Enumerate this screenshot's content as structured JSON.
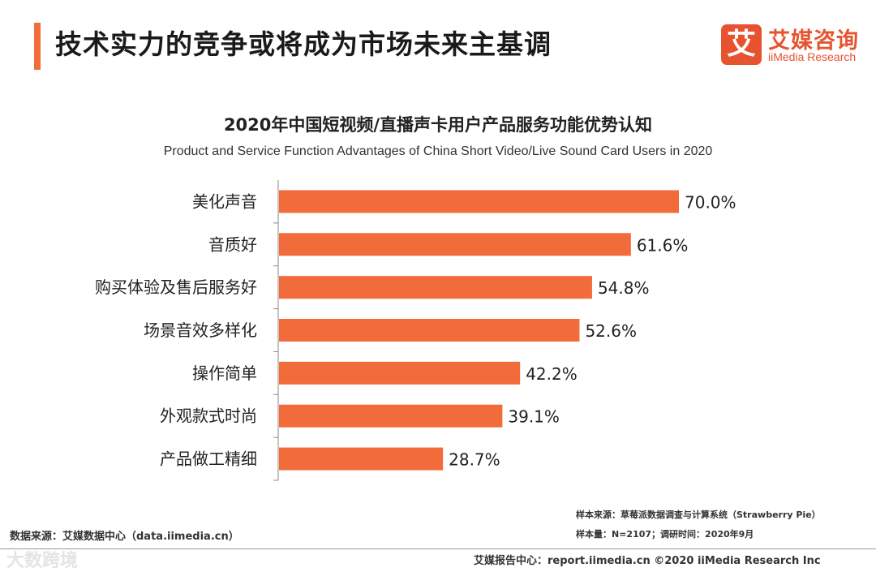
{
  "header": {
    "title": "技术实力的竞争或将成为市场未来主基调"
  },
  "logo": {
    "mark": "艾",
    "name_cn": "艾媒咨询",
    "name_en": "iiMedia Research"
  },
  "chart_data": {
    "type": "bar",
    "orientation": "horizontal",
    "title": "2020年中国短视频/直播声卡用户产品服务功能优势认知",
    "subtitle": "Product and Service Function Advantages of China Short Video/Live Sound Card Users in 2020",
    "categories": [
      "美化声音",
      "音质好",
      "购买体验及售后服务好",
      "场景音效多样化",
      "操作简单",
      "外观款式时尚",
      "产品做工精细"
    ],
    "values": [
      70.0,
      61.6,
      54.8,
      52.6,
      42.2,
      39.1,
      28.7
    ],
    "value_labels": [
      "70.0%",
      "61.6%",
      "54.8%",
      "52.6%",
      "42.2%",
      "39.1%",
      "28.7%"
    ],
    "unit": "%",
    "xlim": [
      0,
      70
    ],
    "bar_color": "#f26b3a",
    "grid": false
  },
  "source": {
    "left": "数据来源：艾媒数据中心（data.iimedia.cn）",
    "sample_source": "样本来源：草莓派数据调查与计算系统（Strawberry Pie）",
    "sample_size": "样本量：N=2107；调研时间：2020年9月"
  },
  "footer": {
    "text": "艾媒报告中心：report.iimedia.cn   ©2020  iiMedia Research  Inc"
  },
  "watermark": "大数跨境"
}
